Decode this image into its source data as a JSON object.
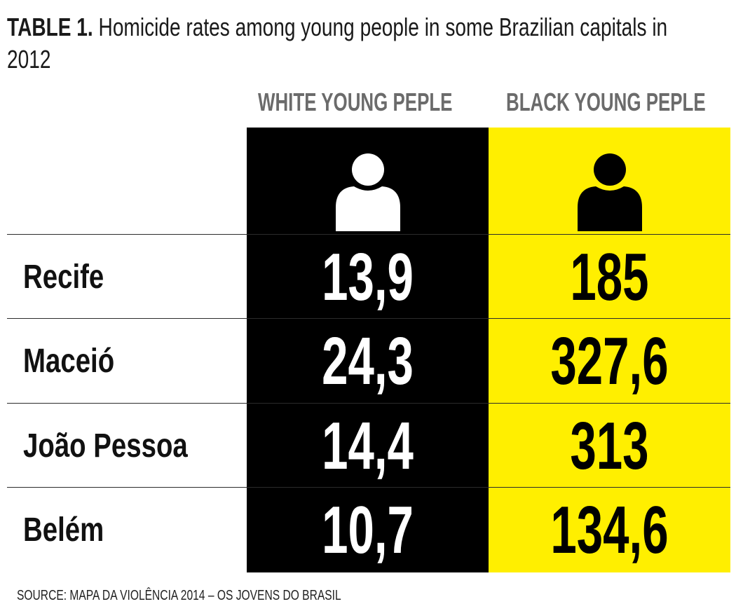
{
  "title": {
    "lead": "TABLE 1.",
    "text": "Homicide rates among young people in some Brazilian capitals in 2012"
  },
  "columns": {
    "white": "WHITE YOUNG PEPLE",
    "black": "BLACK YOUNG PEPLE"
  },
  "icons": {
    "white": "person-icon",
    "black": "person-icon"
  },
  "colors": {
    "white_panel": "#000000",
    "black_panel": "#ffef00",
    "header_text": "#6b6b6b"
  },
  "rows": [
    {
      "city": "Recife",
      "white": "13,9",
      "black": "185"
    },
    {
      "city": "Maceió",
      "white": "24,3",
      "black": "327,6"
    },
    {
      "city": "João Pessoa",
      "white": "14,4",
      "black": "313"
    },
    {
      "city": "Belém",
      "white": "10,7",
      "black": "134,6"
    }
  ],
  "source": "SOURCE: MAPA DA VIOLÊNCIA 2014 – OS JOVENS DO BRASIL"
}
